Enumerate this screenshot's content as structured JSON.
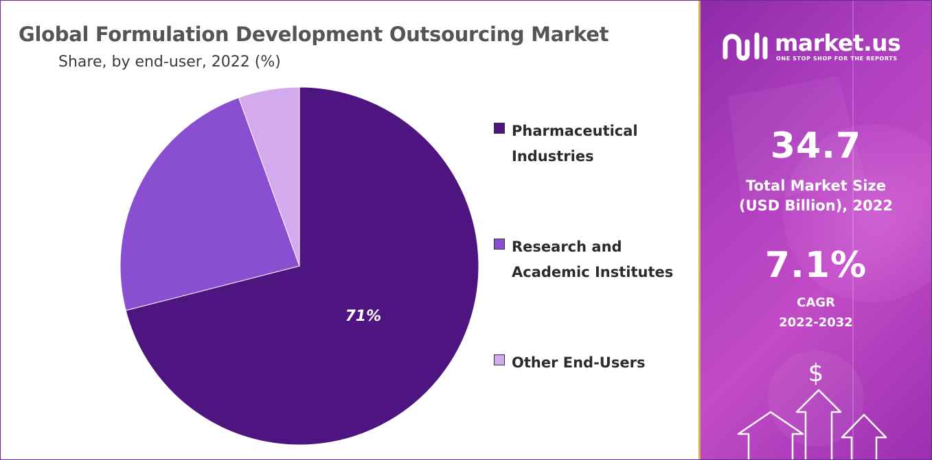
{
  "chart_data": {
    "type": "pie",
    "title": "Global Formulation Development Outsourcing Market",
    "subtitle": "Share, by end-user, 2022 (%)",
    "slices": [
      {
        "name": "Pharmaceutical Industries",
        "value": 71,
        "label": "71%",
        "color": "#4e1580"
      },
      {
        "name": "Research and Academic Institutes",
        "value": 23.5,
        "label": "",
        "color": "#8a4fd0"
      },
      {
        "name": "Other End-Users",
        "value": 5.5,
        "label": "",
        "color": "#d4aaee"
      }
    ],
    "legend_position": "right"
  },
  "legend": [
    {
      "label": "Pharmaceutical\nIndustries",
      "color": "#4e1580"
    },
    {
      "label": "Research and\nAcademic Institutes",
      "color": "#8a4fd0"
    },
    {
      "label": "Other End-Users",
      "color": "#d4aaee"
    }
  ],
  "brand": {
    "name": "market.us",
    "tagline": "ONE STOP SHOP FOR THE REPORTS",
    "icon": "market-us-logo-icon"
  },
  "stats": {
    "market_size_value": "34.7",
    "market_size_label": "Total Market Size\n(USD Billion), 2022",
    "cagr_value": "7.1%",
    "cagr_label": "CAGR\n2022-2032"
  },
  "decor": {
    "dollar_symbol": "$"
  },
  "colors": {
    "panel_purple": "#a437b8",
    "frame": "#6a2a8f",
    "divider_gold": "#d4b25a"
  }
}
